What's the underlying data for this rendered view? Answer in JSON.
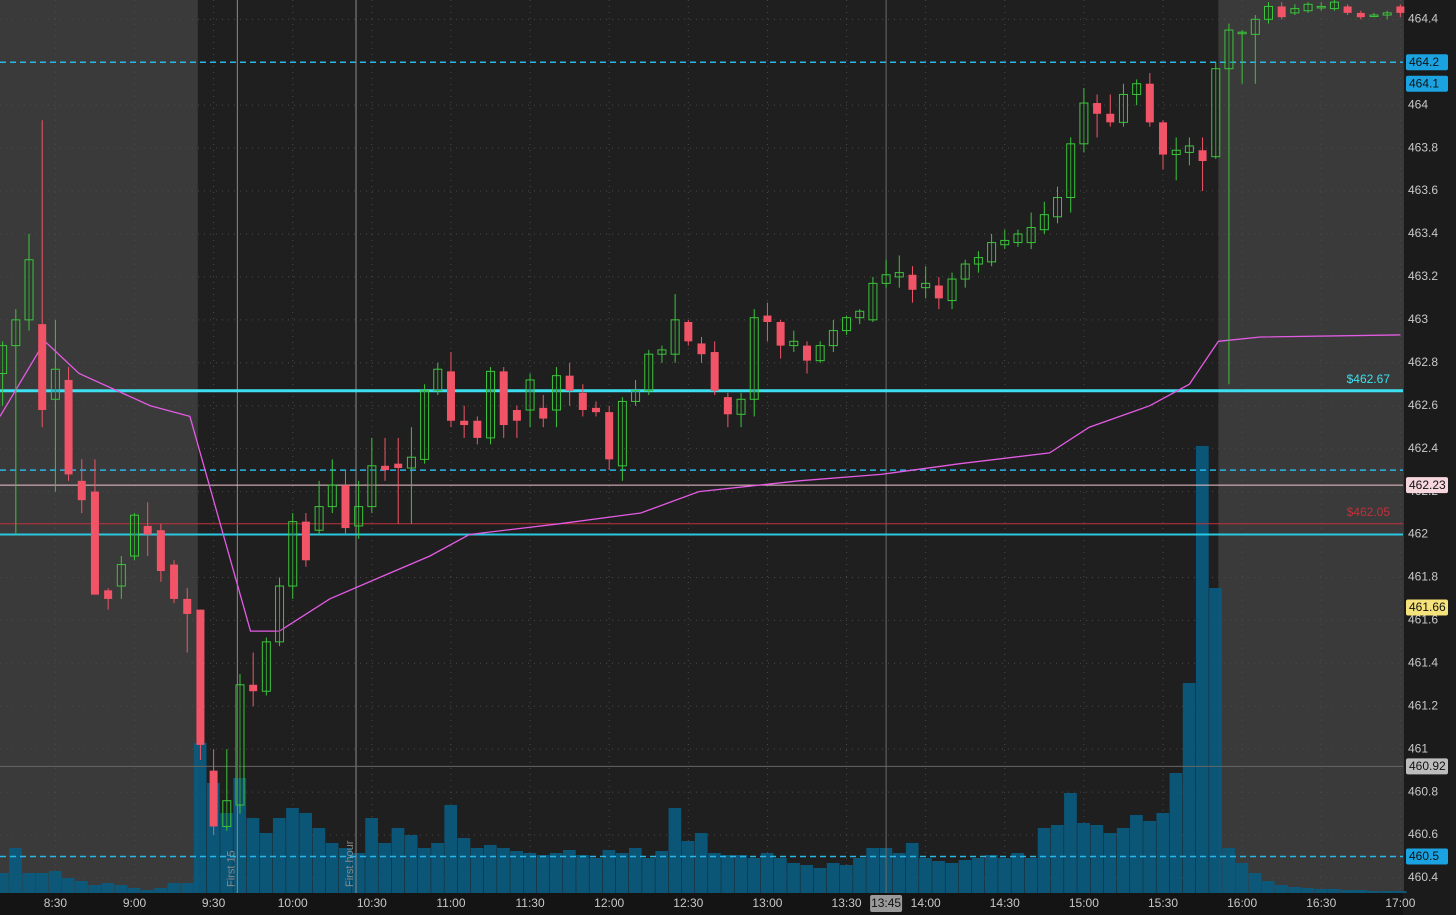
{
  "chart_data": {
    "type": "candlestick",
    "up_color": "#3cc43c",
    "down_color": "#f25467",
    "volume_color": "#0b5a7c",
    "grid": true,
    "xlim": [
      489,
      1021
    ],
    "ylim": [
      460.33,
      464.49
    ],
    "shaded": [
      [
        489,
        564
      ],
      [
        951,
        1021
      ]
    ],
    "x": [
      490,
      495,
      500,
      505,
      510,
      515,
      520,
      525,
      530,
      535,
      540,
      545,
      550,
      555,
      560,
      565,
      570,
      575,
      580,
      585,
      590,
      595,
      600,
      605,
      610,
      615,
      620,
      625,
      630,
      635,
      640,
      645,
      650,
      655,
      660,
      665,
      670,
      675,
      680,
      685,
      690,
      695,
      700,
      705,
      710,
      715,
      720,
      725,
      730,
      735,
      740,
      745,
      750,
      755,
      760,
      765,
      770,
      775,
      780,
      785,
      790,
      795,
      800,
      805,
      810,
      815,
      820,
      825,
      830,
      835,
      840,
      845,
      850,
      855,
      860,
      865,
      870,
      875,
      880,
      885,
      890,
      895,
      900,
      905,
      910,
      915,
      920,
      925,
      930,
      935,
      940,
      945,
      950,
      955,
      960,
      965,
      970,
      975,
      980,
      985,
      990,
      995,
      1000,
      1005,
      1010,
      1015,
      1020
    ],
    "open": [
      462.75,
      462.88,
      463.0,
      462.98,
      462.63,
      462.72,
      462.25,
      462.2,
      461.74,
      461.76,
      461.9,
      462.04,
      462.02,
      461.86,
      461.7,
      461.65,
      460.9,
      460.64,
      460.74,
      461.3,
      461.27,
      461.5,
      461.76,
      462.06,
      462.02,
      462.13,
      462.23,
      462.04,
      462.13,
      462.32,
      462.33,
      462.31,
      462.35,
      462.67,
      462.76,
      462.53,
      462.53,
      462.45,
      462.76,
      462.58,
      462.58,
      462.59,
      462.58,
      462.74,
      462.66,
      462.59,
      462.57,
      462.32,
      462.62,
      462.67,
      462.84,
      462.84,
      462.99,
      462.89,
      462.85,
      462.64,
      462.56,
      462.63,
      463.02,
      462.99,
      462.88,
      462.88,
      462.81,
      462.88,
      462.95,
      463.01,
      463.0,
      463.17,
      463.2,
      463.21,
      463.15,
      463.16,
      463.09,
      463.19,
      463.26,
      463.27,
      463.35,
      463.36,
      463.36,
      463.42,
      463.48,
      463.57,
      463.82,
      464.01,
      463.96,
      463.92,
      464.05,
      464.1,
      463.92,
      463.77,
      463.78,
      463.79,
      463.76,
      464.17,
      464.34,
      464.33,
      464.4,
      464.46,
      464.43,
      464.44,
      464.46,
      464.45,
      464.46,
      464.43,
      464.42,
      464.42,
      464.46
    ],
    "high": [
      462.9,
      463.05,
      463.4,
      463.93,
      463.0,
      462.78,
      462.35,
      462.35,
      461.75,
      461.9,
      462.1,
      462.15,
      462.05,
      461.88,
      461.75,
      461.65,
      461.0,
      461.0,
      461.35,
      461.45,
      461.52,
      461.8,
      462.1,
      462.1,
      462.25,
      462.35,
      462.3,
      462.25,
      462.45,
      462.45,
      462.45,
      462.5,
      462.7,
      462.8,
      462.85,
      462.6,
      462.55,
      462.78,
      462.78,
      462.6,
      462.75,
      462.65,
      462.78,
      462.8,
      462.7,
      462.62,
      462.6,
      462.64,
      462.72,
      462.86,
      462.88,
      463.12,
      463.0,
      462.92,
      462.9,
      462.66,
      462.66,
      463.05,
      463.08,
      463.0,
      462.95,
      462.9,
      462.9,
      463.0,
      463.02,
      463.05,
      463.2,
      463.28,
      463.3,
      463.25,
      463.25,
      463.2,
      463.22,
      463.28,
      463.32,
      463.4,
      463.42,
      463.42,
      463.5,
      463.55,
      463.62,
      463.85,
      464.08,
      464.05,
      464.05,
      464.1,
      464.12,
      464.15,
      463.93,
      463.85,
      463.85,
      463.85,
      464.2,
      464.38,
      464.35,
      464.42,
      464.48,
      464.48,
      464.47,
      464.48,
      464.48,
      464.49,
      464.47,
      464.44,
      464.43,
      464.44,
      464.47
    ],
    "low": [
      462.6,
      462.0,
      462.95,
      462.5,
      462.2,
      462.25,
      462.1,
      461.72,
      461.65,
      461.7,
      461.88,
      461.9,
      461.78,
      461.68,
      461.45,
      460.95,
      460.6,
      460.62,
      460.7,
      461.2,
      461.25,
      461.48,
      461.7,
      461.85,
      462.0,
      462.1,
      462.0,
      461.98,
      462.1,
      462.25,
      462.05,
      462.05,
      462.33,
      462.65,
      462.5,
      462.45,
      462.42,
      462.42,
      462.45,
      462.45,
      462.5,
      462.5,
      462.5,
      462.6,
      462.55,
      462.55,
      462.3,
      462.25,
      462.6,
      462.65,
      462.8,
      462.8,
      462.88,
      462.8,
      462.65,
      462.5,
      462.5,
      462.55,
      462.9,
      462.82,
      462.85,
      462.75,
      462.8,
      462.85,
      462.93,
      462.98,
      462.99,
      463.15,
      463.15,
      463.08,
      463.1,
      463.05,
      463.05,
      463.15,
      463.22,
      463.25,
      463.33,
      463.34,
      463.33,
      463.4,
      463.45,
      463.5,
      463.78,
      463.85,
      463.9,
      463.9,
      464.0,
      463.9,
      463.7,
      463.65,
      463.72,
      463.6,
      463.75,
      462.7,
      464.1,
      464.1,
      464.38,
      464.4,
      464.42,
      464.43,
      464.44,
      464.44,
      464.42,
      464.4,
      464.41,
      464.4,
      464.41
    ],
    "close": [
      462.88,
      463.0,
      463.28,
      462.58,
      462.77,
      462.28,
      462.16,
      461.72,
      461.7,
      461.86,
      462.09,
      462.0,
      461.83,
      461.7,
      461.63,
      461.02,
      460.64,
      460.76,
      461.3,
      461.27,
      461.5,
      461.76,
      462.06,
      461.88,
      462.13,
      462.23,
      462.03,
      462.13,
      462.32,
      462.3,
      462.31,
      462.36,
      462.67,
      462.77,
      462.53,
      462.51,
      462.45,
      462.76,
      462.51,
      462.53,
      462.72,
      462.54,
      462.74,
      462.67,
      462.58,
      462.57,
      462.35,
      462.62,
      462.67,
      462.84,
      462.86,
      463.0,
      462.9,
      462.84,
      462.67,
      462.56,
      462.63,
      463.01,
      462.99,
      462.88,
      462.9,
      462.81,
      462.88,
      462.95,
      463.01,
      463.04,
      463.17,
      463.21,
      463.22,
      463.14,
      463.17,
      463.1,
      463.19,
      463.26,
      463.29,
      463.36,
      463.37,
      463.4,
      463.43,
      463.49,
      463.57,
      463.82,
      464.01,
      463.96,
      463.92,
      464.05,
      464.1,
      463.92,
      463.77,
      463.79,
      463.81,
      463.74,
      464.17,
      464.35,
      464.34,
      464.4,
      464.46,
      464.41,
      464.45,
      464.47,
      464.46,
      464.48,
      464.43,
      464.41,
      464.42,
      464.43,
      464.43
    ],
    "volume": [
      20,
      45,
      20,
      20,
      22,
      15,
      12,
      8,
      10,
      8,
      5,
      3,
      5,
      10,
      10,
      150,
      110,
      80,
      115,
      75,
      60,
      75,
      85,
      80,
      65,
      50,
      45,
      40,
      75,
      50,
      65,
      58,
      45,
      50,
      88,
      55,
      45,
      48,
      45,
      42,
      40,
      38,
      40,
      43,
      38,
      35,
      43,
      40,
      45,
      35,
      42,
      85,
      52,
      60,
      40,
      38,
      38,
      35,
      40,
      35,
      30,
      28,
      25,
      30,
      28,
      35,
      45,
      45,
      40,
      50,
      35,
      32,
      30,
      33,
      35,
      38,
      35,
      40,
      35,
      65,
      68,
      100,
      70,
      68,
      60,
      65,
      78,
      72,
      80,
      120,
      210,
      447,
      305,
      45,
      30,
      20,
      12,
      8,
      6,
      5,
      4,
      4,
      3,
      3,
      2,
      2,
      2
    ],
    "line": {
      "color": "#e35be3",
      "x": [
        489,
        506,
        519,
        546,
        561,
        584,
        595,
        614,
        633,
        652,
        667,
        701,
        732,
        754,
        792,
        823,
        853,
        887,
        902,
        925,
        940,
        951,
        967,
        1020
      ],
      "values": [
        462.55,
        462.9,
        462.75,
        462.6,
        462.55,
        461.55,
        461.55,
        461.7,
        461.8,
        461.9,
        462.0,
        462.05,
        462.1,
        462.2,
        462.25,
        462.28,
        462.33,
        462.38,
        462.5,
        462.6,
        462.7,
        462.9,
        462.92,
        462.93
      ]
    },
    "levels": [
      {
        "value": 464.2,
        "color": "#29b6e8",
        "style": "dashed"
      },
      {
        "value": 462.3,
        "color": "#29b6e8",
        "style": "dashed"
      },
      {
        "value": 460.5,
        "color": "#29b6e8",
        "style": "dashed"
      },
      {
        "value": 462.67,
        "color": "#3de0ef",
        "style": "thick",
        "label": "$462.67"
      },
      {
        "value": 462.0,
        "color": "#29c8e0",
        "style": "medium"
      },
      {
        "value": 462.23,
        "color": "#f2c4cf",
        "style": "solid"
      },
      {
        "value": 462.05,
        "color": "#c0303c",
        "style": "solid",
        "label": "$462.05"
      },
      {
        "value": 460.92,
        "color": "#666666",
        "style": "solid"
      }
    ],
    "price_tags": [
      {
        "value": 464.2,
        "color": "#1aa3e0"
      },
      {
        "value": 464.1,
        "color": "#1aa3e0"
      },
      {
        "value": 462.23,
        "color": "#f7d7de"
      },
      {
        "value": 461.66,
        "color": "#f5e27a"
      },
      {
        "value": 460.92,
        "color": "#bdbdbd"
      },
      {
        "value": 460.5,
        "color": "#1aa3e0"
      }
    ],
    "markers": [
      {
        "x": 579,
        "label": "First 15"
      },
      {
        "x": 624,
        "label": "First hour"
      }
    ],
    "crosshair": {
      "x": 825,
      "label": "13:45"
    },
    "yticks": [
      460.4,
      460.6,
      460.8,
      461,
      461.2,
      461.4,
      461.6,
      461.8,
      462,
      462.2,
      462.4,
      462.6,
      462.8,
      463,
      463.2,
      463.4,
      463.6,
      463.8,
      464,
      464.4
    ],
    "xticks": [
      {
        "value": 510,
        "label": "8:30"
      },
      {
        "value": 540,
        "label": "9:00"
      },
      {
        "value": 570,
        "label": "9:30"
      },
      {
        "value": 600,
        "label": "10:00"
      },
      {
        "value": 630,
        "label": "10:30"
      },
      {
        "value": 660,
        "label": "11:00"
      },
      {
        "value": 690,
        "label": "11:30"
      },
      {
        "value": 720,
        "label": "12:00"
      },
      {
        "value": 750,
        "label": "12:30"
      },
      {
        "value": 780,
        "label": "13:00"
      },
      {
        "value": 810,
        "label": "13:30"
      },
      {
        "value": 840,
        "label": "14:00"
      },
      {
        "value": 870,
        "label": "14:30"
      },
      {
        "value": 900,
        "label": "15:00"
      },
      {
        "value": 930,
        "label": "15:30"
      },
      {
        "value": 960,
        "label": "16:00"
      },
      {
        "value": 990,
        "label": "16:30"
      },
      {
        "value": 1020,
        "label": "17:00"
      }
    ]
  }
}
